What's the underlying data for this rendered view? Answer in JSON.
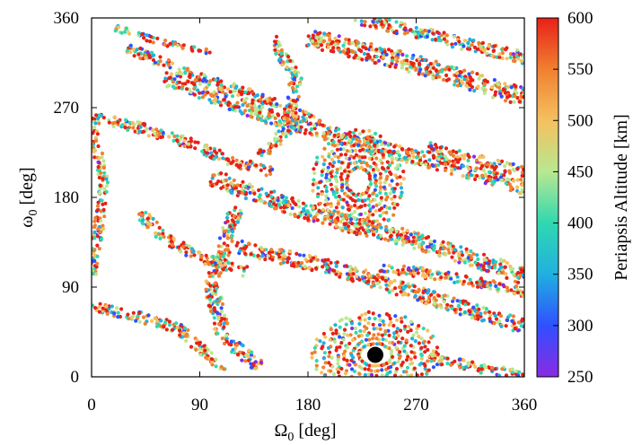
{
  "chart_data": {
    "type": "scatter",
    "xlabel": {
      "main": "Ω",
      "sub": "0",
      "unit": " [deg]"
    },
    "ylabel": {
      "main": "ω",
      "sub": "0",
      "unit": " [deg]"
    },
    "xlim": [
      0,
      360
    ],
    "ylim": [
      0,
      360
    ],
    "xticks": [
      "0",
      "90",
      "180",
      "270",
      "360"
    ],
    "yticks": [
      "0",
      "90",
      "180",
      "270",
      "360"
    ],
    "colorbar": {
      "label": "Periapsis Altitude [km]",
      "range": [
        250,
        600
      ],
      "ticks": [
        "250",
        "300",
        "350",
        "400",
        "450",
        "500",
        "550",
        "600"
      ],
      "colors": [
        "#8a2be2",
        "#3050ff",
        "#20b0e0",
        "#30d8b0",
        "#b8e890",
        "#f5c060",
        "#f08030",
        "#e82018"
      ]
    },
    "marker": {
      "x": 236,
      "y": 22,
      "color": "#000000"
    },
    "structures": [
      {
        "kind": "vortex",
        "cx": 236,
        "cy": 22,
        "rx": 55,
        "ry": 45
      },
      {
        "kind": "vortex",
        "cx": 222,
        "cy": 196,
        "rx": 40,
        "ry": 55
      },
      {
        "kind": "band",
        "points": [
          [
            60,
            300
          ],
          [
            150,
            260
          ],
          [
            240,
            230
          ],
          [
            330,
            200
          ],
          [
            360,
            190
          ]
        ],
        "width": 14
      },
      {
        "kind": "band",
        "points": [
          [
            100,
            200
          ],
          [
            180,
            165
          ],
          [
            260,
            140
          ],
          [
            340,
            110
          ],
          [
            360,
            100
          ]
        ],
        "width": 16
      },
      {
        "kind": "band",
        "points": [
          [
            120,
            130
          ],
          [
            200,
            110
          ],
          [
            280,
            80
          ],
          [
            360,
            50
          ]
        ],
        "width": 14
      },
      {
        "kind": "band",
        "points": [
          [
            180,
            340
          ],
          [
            250,
            320
          ],
          [
            320,
            295
          ],
          [
            360,
            280
          ]
        ],
        "width": 18
      },
      {
        "kind": "band",
        "points": [
          [
            220,
            360
          ],
          [
            290,
            340
          ],
          [
            360,
            320
          ]
        ],
        "width": 12
      },
      {
        "kind": "band",
        "points": [
          [
            0,
            260
          ],
          [
            40,
            250
          ],
          [
            80,
            235
          ],
          [
            120,
            215
          ],
          [
            150,
            205
          ]
        ],
        "width": 10
      },
      {
        "kind": "band",
        "points": [
          [
            30,
            330
          ],
          [
            90,
            300
          ],
          [
            140,
            280
          ],
          [
            190,
            255
          ]
        ],
        "width": 10
      },
      {
        "kind": "band",
        "points": [
          [
            150,
            340
          ],
          [
            170,
            300
          ],
          [
            165,
            250
          ],
          [
            140,
            220
          ]
        ],
        "width": 10
      },
      {
        "kind": "band",
        "points": [
          [
            120,
            170
          ],
          [
            110,
            130
          ],
          [
            100,
            90
          ],
          [
            110,
            40
          ],
          [
            140,
            10
          ]
        ],
        "width": 12
      },
      {
        "kind": "band",
        "points": [
          [
            40,
            165
          ],
          [
            60,
            140
          ],
          [
            90,
            120
          ],
          [
            130,
            105
          ]
        ],
        "width": 10
      },
      {
        "kind": "band",
        "points": [
          [
            0,
            70
          ],
          [
            40,
            60
          ],
          [
            70,
            50
          ],
          [
            90,
            30
          ],
          [
            110,
            5
          ]
        ],
        "width": 10
      },
      {
        "kind": "band",
        "points": [
          [
            20,
            350
          ],
          [
            60,
            335
          ],
          [
            100,
            325
          ]
        ],
        "width": 6
      },
      {
        "kind": "band",
        "points": [
          [
            280,
            20
          ],
          [
            320,
            10
          ],
          [
            360,
            0
          ]
        ],
        "width": 10
      },
      {
        "kind": "band",
        "points": [
          [
            240,
            110
          ],
          [
            300,
            100
          ],
          [
            360,
            85
          ]
        ],
        "width": 10
      },
      {
        "kind": "band",
        "points": [
          [
            280,
            230
          ],
          [
            330,
            215
          ],
          [
            360,
            205
          ]
        ],
        "width": 10
      },
      {
        "kind": "band",
        "points": [
          [
            0,
            250
          ],
          [
            10,
            200
          ],
          [
            5,
            140
          ],
          [
            0,
            100
          ]
        ],
        "width": 8
      }
    ]
  }
}
